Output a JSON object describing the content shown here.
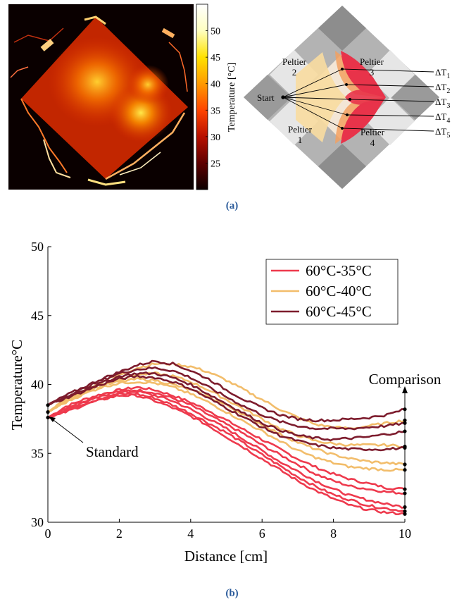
{
  "panel_a": {
    "caption": "(a)",
    "colorbar": {
      "label": "Temperature [°C]",
      "ticks": [
        25,
        30,
        35,
        40,
        45,
        50
      ],
      "range": [
        20,
        55
      ],
      "colors": [
        "#0b0000",
        "#5e0000",
        "#b81000",
        "#ff4500",
        "#ff9a00",
        "#ffe200",
        "#ffffc0",
        "#ffffff"
      ]
    },
    "schematic": {
      "labels": {
        "start": "Start",
        "peltier_1": [
          "Peltier",
          "1"
        ],
        "peltier_2": [
          "Peltier",
          "2"
        ],
        "peltier_3": [
          "Peltier",
          "3"
        ],
        "peltier_4": [
          "Peltier",
          "4"
        ]
      },
      "delta_labels": [
        {
          "base": "ΔT",
          "sub": "1"
        },
        {
          "base": "ΔT",
          "sub": "2"
        },
        {
          "base": "ΔT",
          "sub": "3"
        },
        {
          "base": "ΔT",
          "sub": "4"
        },
        {
          "base": "ΔT",
          "sub": "5"
        }
      ],
      "colors": {
        "frame": "#b3b3b3",
        "square": "#e0e0e0",
        "pad": "#7a7a7a",
        "hot": "#e8334a",
        "mid": "#f2a060",
        "warm": "#f5cf7a"
      }
    }
  },
  "panel_b": {
    "caption": "(b)",
    "chart_data": {
      "type": "line",
      "xlabel": "Distance [cm]",
      "ylabel": "Temperature°C",
      "xlim": [
        0,
        10
      ],
      "ylim": [
        30,
        50
      ],
      "xticks": [
        0,
        2,
        4,
        6,
        8,
        10
      ],
      "yticks": [
        30,
        35,
        40,
        45,
        50
      ],
      "grid": false,
      "legend_position": "top-right",
      "annotations": [
        {
          "text": "Standard",
          "x": 0,
          "y": 37.6
        },
        {
          "text": "Comparison",
          "x": 10,
          "y": 40
        }
      ],
      "x": [
        0,
        0.5,
        1,
        1.5,
        2,
        2.5,
        3,
        3.5,
        4,
        4.5,
        5,
        5.5,
        6,
        6.5,
        7,
        7.5,
        8,
        8.5,
        9,
        9.5,
        10
      ],
      "series": [
        {
          "name": "60°C-35°C",
          "color": "#ee3a4d",
          "lines": [
            [
              37.6,
              38.4,
              38.9,
              39.3,
              39.6,
              39.8,
              39.6,
              39.2,
              38.7,
              38.1,
              37.4,
              36.7,
              36.0,
              35.3,
              34.6,
              34.0,
              33.5,
              33.1,
              32.8,
              32.5,
              32.4
            ],
            [
              37.6,
              38.3,
              38.8,
              39.2,
              39.5,
              39.6,
              39.4,
              39.0,
              38.5,
              37.8,
              37.1,
              36.4,
              35.6,
              34.9,
              34.2,
              33.5,
              33.0,
              32.6,
              32.4,
              32.2,
              32.1
            ],
            [
              37.6,
              38.2,
              38.7,
              39.1,
              39.4,
              39.5,
              39.2,
              38.8,
              38.2,
              37.5,
              36.8,
              36.0,
              35.2,
              34.4,
              33.7,
              33.0,
              32.4,
              31.9,
              31.6,
              31.3,
              31.1
            ],
            [
              37.6,
              38.1,
              38.6,
              39.0,
              39.3,
              39.3,
              39.0,
              38.5,
              37.9,
              37.2,
              36.5,
              35.7,
              34.9,
              34.1,
              33.3,
              32.6,
              32.0,
              31.6,
              31.2,
              31.0,
              30.8
            ],
            [
              37.6,
              38.0,
              38.5,
              38.9,
              39.2,
              39.2,
              38.8,
              38.3,
              37.7,
              37.0,
              36.2,
              35.4,
              34.6,
              33.8,
              33.0,
              32.3,
              31.7,
              31.2,
              30.9,
              30.7,
              30.6
            ]
          ]
        },
        {
          "name": "60°C-40°C",
          "color": "#f2bd6b",
          "lines": [
            [
              38.0,
              38.9,
              39.6,
              40.2,
              40.7,
              41.2,
              41.5,
              41.5,
              41.3,
              40.9,
              40.3,
              39.6,
              38.9,
              38.2,
              37.6,
              37.1,
              36.9,
              36.8,
              37.0,
              37.2,
              37.4
            ],
            [
              38.0,
              38.8,
              39.5,
              40.0,
              40.4,
              40.7,
              40.8,
              40.6,
              40.2,
              39.6,
              38.9,
              38.2,
              37.5,
              36.8,
              36.3,
              35.9,
              35.7,
              35.6,
              35.6,
              35.6,
              35.5
            ],
            [
              38.0,
              38.8,
              39.4,
              39.9,
              40.2,
              40.4,
              40.3,
              40.0,
              39.6,
              39.1,
              38.5,
              37.8,
              37.1,
              36.4,
              35.8,
              35.3,
              34.9,
              34.6,
              34.4,
              34.3,
              34.2
            ],
            [
              38.0,
              38.7,
              39.3,
              39.8,
              40.1,
              40.2,
              40.1,
              39.8,
              39.3,
              38.7,
              38.0,
              37.3,
              36.6,
              35.9,
              35.2,
              34.7,
              34.3,
              34.0,
              33.9,
              33.8,
              33.8
            ]
          ]
        },
        {
          "name": "60°C-45°C",
          "color": "#7d1c2d",
          "lines": [
            [
              38.5,
              39.2,
              39.8,
              40.4,
              40.9,
              41.4,
              41.7,
              41.5,
              41.0,
              40.4,
              39.6,
              38.9,
              38.3,
              37.8,
              37.5,
              37.4,
              37.4,
              37.5,
              37.6,
              37.8,
              38.2
            ],
            [
              38.5,
              39.1,
              39.7,
              40.3,
              40.8,
              41.1,
              41.2,
              41.0,
              40.5,
              39.8,
              39.1,
              38.4,
              37.8,
              37.3,
              37.0,
              36.8,
              36.8,
              36.8,
              36.9,
              37.0,
              37.2
            ],
            [
              38.5,
              39.1,
              39.6,
              40.1,
              40.6,
              40.8,
              40.8,
              40.5,
              40.0,
              39.3,
              38.6,
              37.9,
              37.2,
              36.7,
              36.3,
              36.1,
              36.0,
              36.1,
              36.2,
              36.4,
              36.6
            ],
            [
              38.5,
              39.0,
              39.5,
              40.0,
              40.4,
              40.6,
              40.5,
              40.2,
              39.7,
              39.0,
              38.3,
              37.6,
              36.9,
              36.3,
              35.9,
              35.6,
              35.4,
              35.3,
              35.3,
              35.3,
              35.4
            ]
          ]
        }
      ]
    }
  }
}
